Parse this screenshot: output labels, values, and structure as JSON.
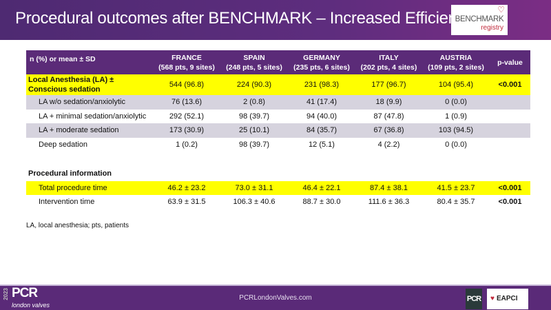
{
  "title": "Procedural outcomes after BENCHMARK – Increased Efficiency",
  "logo": {
    "line1": "BENCHMARK",
    "line2": "registry"
  },
  "table": {
    "headers": [
      {
        "name": "n (%) or mean  ± SD",
        "sub": ""
      },
      {
        "name": "FRANCE",
        "sub": "(568  pts, 9 sites)"
      },
      {
        "name": "SPAIN",
        "sub": "(248 pts, 5 sites)"
      },
      {
        "name": "GERMANY",
        "sub": "(235 pts, 6 sites)"
      },
      {
        "name": "ITALY",
        "sub": "(202 pts, 4 sites)"
      },
      {
        "name": "AUSTRIA",
        "sub": "(109 pts, 2 sites)"
      },
      {
        "name": "p-value",
        "sub": ""
      }
    ],
    "rows": [
      {
        "label": "Local Anesthesia (LA) ± Conscious sedation",
        "values": [
          "544 (96.8)",
          "224 (90.3)",
          "231 (98.3)",
          "177 (96.7)",
          "104 (95.4)"
        ],
        "p": "<0.001"
      },
      {
        "label": "LA w/o sedation/anxiolytic",
        "values": [
          "76 (13.6)",
          "2 (0.8)",
          "41 (17.4)",
          "18 (9.9)",
          "0 (0.0)"
        ],
        "p": ""
      },
      {
        "label": "LA + minimal sedation/anxiolytic",
        "values": [
          "292 (52.1)",
          "98 (39.7)",
          "94 (40.0)",
          "87 (47.8)",
          "1 (0.9)"
        ],
        "p": ""
      },
      {
        "label": "LA + moderate sedation",
        "values": [
          "173 (30.9)",
          "25 (10.1)",
          "84 (35.7)",
          "67 (36.8)",
          "103 (94.5)"
        ],
        "p": ""
      },
      {
        "label": "Deep sedation",
        "values": [
          "1 (0.2)",
          "98 (39.7)",
          "12 (5.1)",
          "4 (2.2)",
          "0 (0.0)"
        ],
        "p": ""
      }
    ],
    "section": "Procedural information",
    "rows2": [
      {
        "label": "Total procedure time",
        "values": [
          "46.2 ± 23.2",
          "73.0 ± 31.1",
          "46.4 ± 22.1",
          "87.4 ± 38.1",
          "41.5 ± 23.7"
        ],
        "p": "<0.001"
      },
      {
        "label": "Intervention time",
        "values": [
          "63.9 ± 31.5",
          "106.3 ± 40.6",
          "88.7 ± 30.0",
          "111.6 ± 36.3",
          "80.4 ± 35.7"
        ],
        "p": "<0.001"
      }
    ]
  },
  "footnote": "LA, local anesthesia; pts, patients",
  "footer": {
    "year": "2023",
    "brand": "PCR",
    "brand_sub": "london valves",
    "url": "PCRLondonValves.com",
    "pcr_logo": "PCR",
    "eapci": "EAPCI"
  }
}
